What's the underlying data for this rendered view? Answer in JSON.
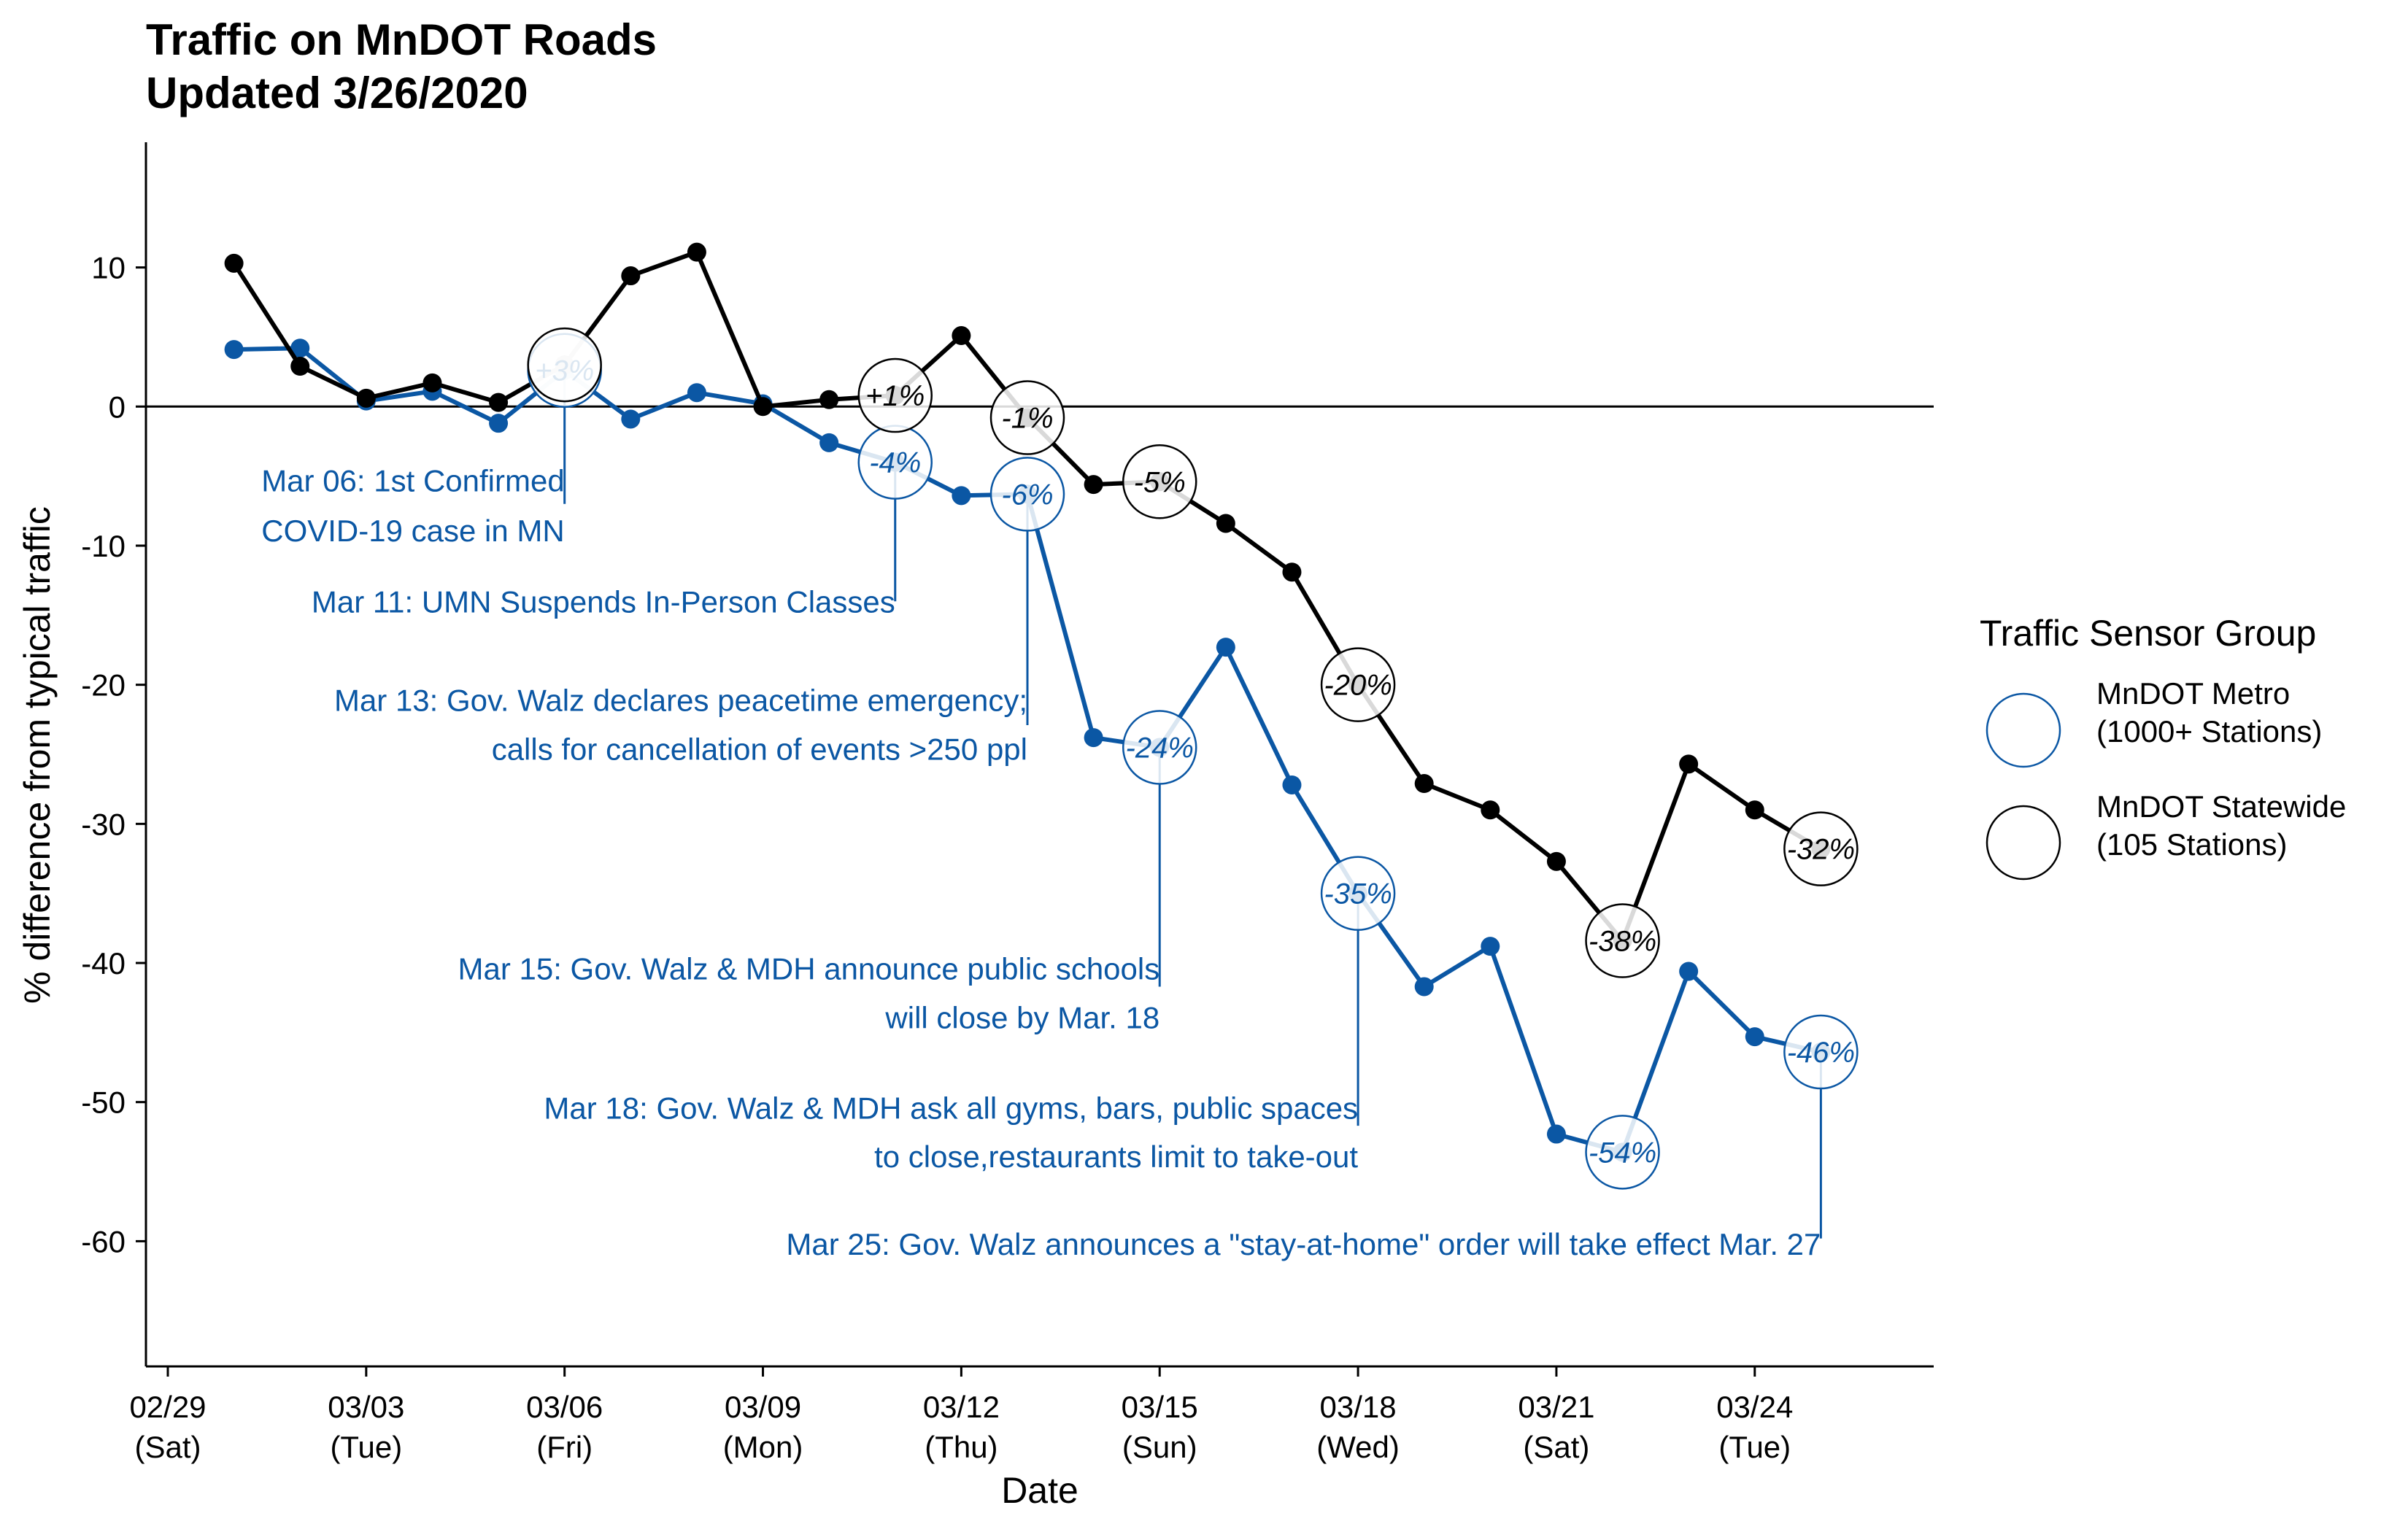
{
  "chart_data": {
    "type": "line",
    "title": "Traffic on MnDOT Roads",
    "subtitle": "Updated 3/26/2020",
    "xlabel": "Date",
    "ylabel": "% difference from typical traffic",
    "ylim": [
      -69,
      19
    ],
    "y_ticks": [
      10,
      0,
      -10,
      -20,
      -30,
      -40,
      -50,
      -60
    ],
    "x_range": [
      "2020-02-29",
      "2020-03-26"
    ],
    "x_ticks": [
      {
        "date": "2020-02-29",
        "line1": "02/29",
        "line2": "(Sat)"
      },
      {
        "date": "2020-03-03",
        "line1": "03/03",
        "line2": "(Tue)"
      },
      {
        "date": "2020-03-06",
        "line1": "03/06",
        "line2": "(Fri)"
      },
      {
        "date": "2020-03-09",
        "line1": "03/09",
        "line2": "(Mon)"
      },
      {
        "date": "2020-03-12",
        "line1": "03/12",
        "line2": "(Thu)"
      },
      {
        "date": "2020-03-15",
        "line1": "03/15",
        "line2": "(Sun)"
      },
      {
        "date": "2020-03-18",
        "line1": "03/18",
        "line2": "(Wed)"
      },
      {
        "date": "2020-03-21",
        "line1": "03/21",
        "line2": "(Sat)"
      },
      {
        "date": "2020-03-24",
        "line1": "03/24",
        "line2": "(Tue)"
      }
    ],
    "reference_line_y": 0,
    "grid": false,
    "legend": {
      "title": "Traffic Sensor Group",
      "position": "right",
      "entries": [
        {
          "line1": "MnDOT Metro",
          "line2": "(1000+ Stations)"
        },
        {
          "line1": "MnDOT Statewide",
          "line2": "(105 Stations)"
        }
      ]
    },
    "series": [
      {
        "color": "#0b57a4",
        "x": [
          "2020-03-01",
          "2020-03-02",
          "2020-03-03",
          "2020-03-04",
          "2020-03-05",
          "2020-03-06",
          "2020-03-07",
          "2020-03-08",
          "2020-03-09",
          "2020-03-10",
          "2020-03-11",
          "2020-03-12",
          "2020-03-13",
          "2020-03-14",
          "2020-03-15",
          "2020-03-16",
          "2020-03-17",
          "2020-03-18",
          "2020-03-19",
          "2020-03-20",
          "2020-03-21",
          "2020-03-22",
          "2020-03-23",
          "2020-03-24",
          "2020-03-25"
        ],
        "values": [
          4.1,
          4.2,
          0.4,
          1.1,
          -1.2,
          2.6,
          -0.9,
          1.0,
          0.2,
          -2.6,
          -4.0,
          -6.4,
          -6.3,
          -23.8,
          -24.5,
          -17.3,
          -27.2,
          -35.0,
          -41.7,
          -38.8,
          -52.3,
          -53.6,
          -40.6,
          -45.3,
          -46.4
        ]
      },
      {
        "color": "#000000",
        "x": [
          "2020-03-01",
          "2020-03-02",
          "2020-03-03",
          "2020-03-04",
          "2020-03-05",
          "2020-03-06",
          "2020-03-07",
          "2020-03-08",
          "2020-03-09",
          "2020-03-10",
          "2020-03-11",
          "2020-03-12",
          "2020-03-13",
          "2020-03-14",
          "2020-03-15",
          "2020-03-16",
          "2020-03-17",
          "2020-03-18",
          "2020-03-19",
          "2020-03-20",
          "2020-03-21",
          "2020-03-22",
          "2020-03-23",
          "2020-03-24",
          "2020-03-25"
        ],
        "values": [
          10.3,
          2.9,
          0.6,
          1.7,
          0.3,
          3.0,
          9.4,
          11.1,
          0.0,
          0.5,
          0.8,
          5.1,
          -0.8,
          -5.6,
          -5.4,
          -8.4,
          -11.9,
          -20.0,
          -27.1,
          -29.0,
          -32.7,
          -38.4,
          -25.7,
          -29.0,
          -31.8
        ]
      }
    ],
    "bubbles": [
      {
        "series": 0,
        "date": "2020-03-06",
        "value": 2.6,
        "label": "+3%"
      },
      {
        "series": 0,
        "date": "2020-03-11",
        "value": -4.0,
        "label": "-4%"
      },
      {
        "series": 0,
        "date": "2020-03-13",
        "value": -6.3,
        "label": "-6%"
      },
      {
        "series": 0,
        "date": "2020-03-15",
        "value": -24.5,
        "label": "-24%"
      },
      {
        "series": 0,
        "date": "2020-03-18",
        "value": -35.0,
        "label": "-35%"
      },
      {
        "series": 0,
        "date": "2020-03-22",
        "value": -53.6,
        "label": "-54%"
      },
      {
        "series": 0,
        "date": "2020-03-25",
        "value": -46.4,
        "label": "-46%"
      },
      {
        "series": 1,
        "date": "2020-03-06",
        "value": 3.0,
        "label": ""
      },
      {
        "series": 1,
        "date": "2020-03-11",
        "value": 0.8,
        "label": "+1%"
      },
      {
        "series": 1,
        "date": "2020-03-13",
        "value": -0.8,
        "label": "-1%"
      },
      {
        "series": 1,
        "date": "2020-03-15",
        "value": -5.4,
        "label": "-5%"
      },
      {
        "series": 1,
        "date": "2020-03-18",
        "value": -20.0,
        "label": "-20%"
      },
      {
        "series": 1,
        "date": "2020-03-22",
        "value": -38.4,
        "label": "-38%"
      },
      {
        "series": 1,
        "date": "2020-03-25",
        "value": -31.8,
        "label": "-32%"
      }
    ],
    "annotations": [
      {
        "date": "2020-03-06",
        "from_value": 2.6,
        "to_value": -7.0,
        "lines": [
          {
            "text": "Mar 06: 1st Confirmed",
            "value": -5.3
          },
          {
            "text": "COVID-19 case in MN",
            "value": -8.9
          }
        ]
      },
      {
        "date": "2020-03-11",
        "from_value": -4.0,
        "to_value": -14.0,
        "lines": [
          {
            "text": "Mar 11: UMN Suspends In-Person Classes",
            "value": -14.0
          }
        ]
      },
      {
        "date": "2020-03-13",
        "from_value": -6.3,
        "to_value": -22.9,
        "lines": [
          {
            "text": "Mar 13: Gov. Walz declares peacetime emergency;",
            "value": -21.1
          },
          {
            "text": "calls for cancellation of events >250 ppl",
            "value": -24.6
          }
        ]
      },
      {
        "date": "2020-03-15",
        "from_value": -24.5,
        "to_value": -41.7,
        "lines": [
          {
            "text": "Mar 15: Gov. Walz & MDH announce public schools",
            "value": -40.4
          },
          {
            "text": "will close by Mar. 18",
            "value": -43.9
          }
        ]
      },
      {
        "date": "2020-03-18",
        "from_value": -35.0,
        "to_value": -51.7,
        "lines": [
          {
            "text": "Mar 18: Gov. Walz & MDH ask all gyms, bars, public spaces",
            "value": -50.4
          },
          {
            "text": "to close,restaurants limit to take-out",
            "value": -53.9
          }
        ]
      },
      {
        "date": "2020-03-25",
        "from_value": -46.4,
        "to_value": -59.8,
        "lines": [
          {
            "text": "Mar 25: Gov. Walz announces a \"stay-at-home\" order will take effect Mar. 27",
            "value": -60.2
          }
        ]
      }
    ]
  }
}
